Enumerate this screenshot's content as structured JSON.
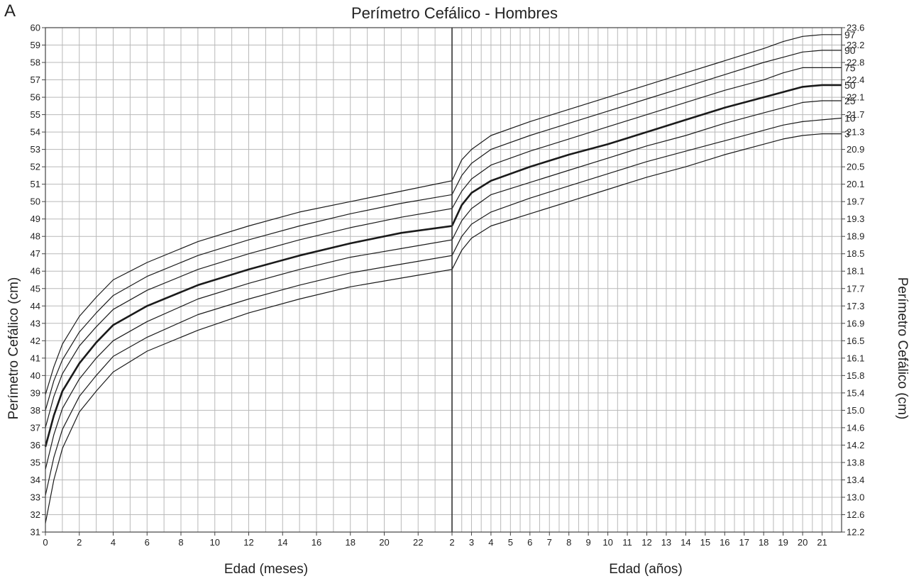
{
  "chart_data": {
    "type": "line",
    "panel_label": "A",
    "title": "Perímetro Cefálico - Hombres",
    "ylabel_left": "Perímetro Cefálico (cm)",
    "ylabel_right": "Perímetro Cefálico (cm)",
    "xlabel_months": "Edad (meses)",
    "xlabel_years": "Edad (años)",
    "ylim": [
      31,
      60
    ],
    "months_xlim": [
      0,
      24
    ],
    "years_xlim": [
      2,
      22
    ],
    "grid": true,
    "y_ticks_left": [
      "31",
      "32",
      "33",
      "34",
      "35",
      "36",
      "37",
      "38",
      "39",
      "40",
      "41",
      "42",
      "43",
      "44",
      "45",
      "46",
      "47",
      "48",
      "49",
      "50",
      "51",
      "52",
      "53",
      "54",
      "55",
      "56",
      "57",
      "58",
      "59",
      "60"
    ],
    "y_ticks_right": [
      "12.2",
      "12.6",
      "13.0",
      "13.4",
      "13.8",
      "14.2",
      "14.6",
      "15.0",
      "15.4",
      "15.8",
      "16.1",
      "16.5",
      "16.9",
      "17.3",
      "17.7",
      "18.1",
      "18.5",
      "18.9",
      "19.3",
      "19.7",
      "20.1",
      "20.5",
      "20.9",
      "21.3",
      "21.7",
      "22.1",
      "22.4",
      "22.8",
      "23.2",
      "23.6"
    ],
    "x_ticks_months": [
      "0",
      "2",
      "4",
      "6",
      "8",
      "10",
      "12",
      "14",
      "16",
      "18",
      "20",
      "22",
      "2"
    ],
    "x_ticks_years": [
      "3",
      "4",
      "5",
      "6",
      "7",
      "8",
      "9",
      "10",
      "11",
      "12",
      "13",
      "14",
      "15",
      "16",
      "17",
      "18",
      "19",
      "20",
      "21"
    ],
    "months_x": [
      0,
      0.5,
      1,
      2,
      3,
      4,
      6,
      9,
      12,
      15,
      18,
      21,
      24
    ],
    "years_x": [
      2,
      2.5,
      3,
      4,
      6,
      8,
      10,
      12,
      14,
      16,
      18,
      19,
      20,
      21,
      22
    ],
    "series": [
      {
        "name": "97",
        "months": [
          38.9,
          40.5,
          41.8,
          43.4,
          44.5,
          45.5,
          46.5,
          47.7,
          48.6,
          49.4,
          50.0,
          50.6,
          51.2
        ],
        "years": [
          51.2,
          52.4,
          53.0,
          53.8,
          54.6,
          55.3,
          56.0,
          56.7,
          57.4,
          58.1,
          58.8,
          59.2,
          59.5,
          59.6,
          59.6
        ]
      },
      {
        "name": "90",
        "months": [
          38.0,
          39.7,
          40.9,
          42.5,
          43.6,
          44.6,
          45.7,
          46.9,
          47.8,
          48.6,
          49.3,
          49.9,
          50.4
        ],
        "years": [
          50.4,
          51.5,
          52.2,
          53.0,
          53.8,
          54.5,
          55.2,
          55.9,
          56.6,
          57.3,
          58.0,
          58.3,
          58.6,
          58.7,
          58.7
        ]
      },
      {
        "name": "75",
        "months": [
          37.0,
          38.8,
          40.1,
          41.7,
          42.8,
          43.8,
          44.9,
          46.1,
          47.0,
          47.8,
          48.5,
          49.1,
          49.6
        ],
        "years": [
          49.6,
          50.6,
          51.3,
          52.1,
          52.9,
          53.6,
          54.3,
          55.0,
          55.7,
          56.4,
          57.0,
          57.4,
          57.7,
          57.7,
          57.7
        ]
      },
      {
        "name": "50",
        "months": [
          35.9,
          37.7,
          39.1,
          40.7,
          41.9,
          42.9,
          44.0,
          45.2,
          46.1,
          46.9,
          47.6,
          48.2,
          48.6
        ],
        "years": [
          48.6,
          49.8,
          50.5,
          51.2,
          52.0,
          52.7,
          53.3,
          54.0,
          54.7,
          55.4,
          56.0,
          56.3,
          56.6,
          56.7,
          56.7
        ]
      },
      {
        "name": "25",
        "months": [
          34.6,
          36.6,
          38.1,
          39.8,
          41.0,
          42.0,
          43.1,
          44.4,
          45.3,
          46.1,
          46.8,
          47.3,
          47.8
        ],
        "years": [
          47.8,
          48.9,
          49.6,
          50.4,
          51.1,
          51.8,
          52.5,
          53.2,
          53.8,
          54.5,
          55.1,
          55.4,
          55.7,
          55.8,
          55.8
        ]
      },
      {
        "name": "10",
        "months": [
          33.1,
          35.3,
          36.9,
          38.8,
          40.0,
          41.1,
          42.2,
          43.5,
          44.4,
          45.2,
          45.9,
          46.4,
          46.9
        ],
        "years": [
          46.9,
          48.0,
          48.7,
          49.4,
          50.2,
          50.9,
          51.6,
          52.3,
          52.9,
          53.5,
          54.1,
          54.4,
          54.6,
          54.7,
          54.8
        ]
      },
      {
        "name": "3",
        "months": [
          31.5,
          34.0,
          35.8,
          37.9,
          39.1,
          40.2,
          41.4,
          42.6,
          43.6,
          44.4,
          45.1,
          45.6,
          46.1
        ],
        "years": [
          46.1,
          47.2,
          47.9,
          48.6,
          49.3,
          50.0,
          50.7,
          51.4,
          52.0,
          52.7,
          53.3,
          53.6,
          53.8,
          53.9,
          53.9
        ]
      }
    ]
  }
}
